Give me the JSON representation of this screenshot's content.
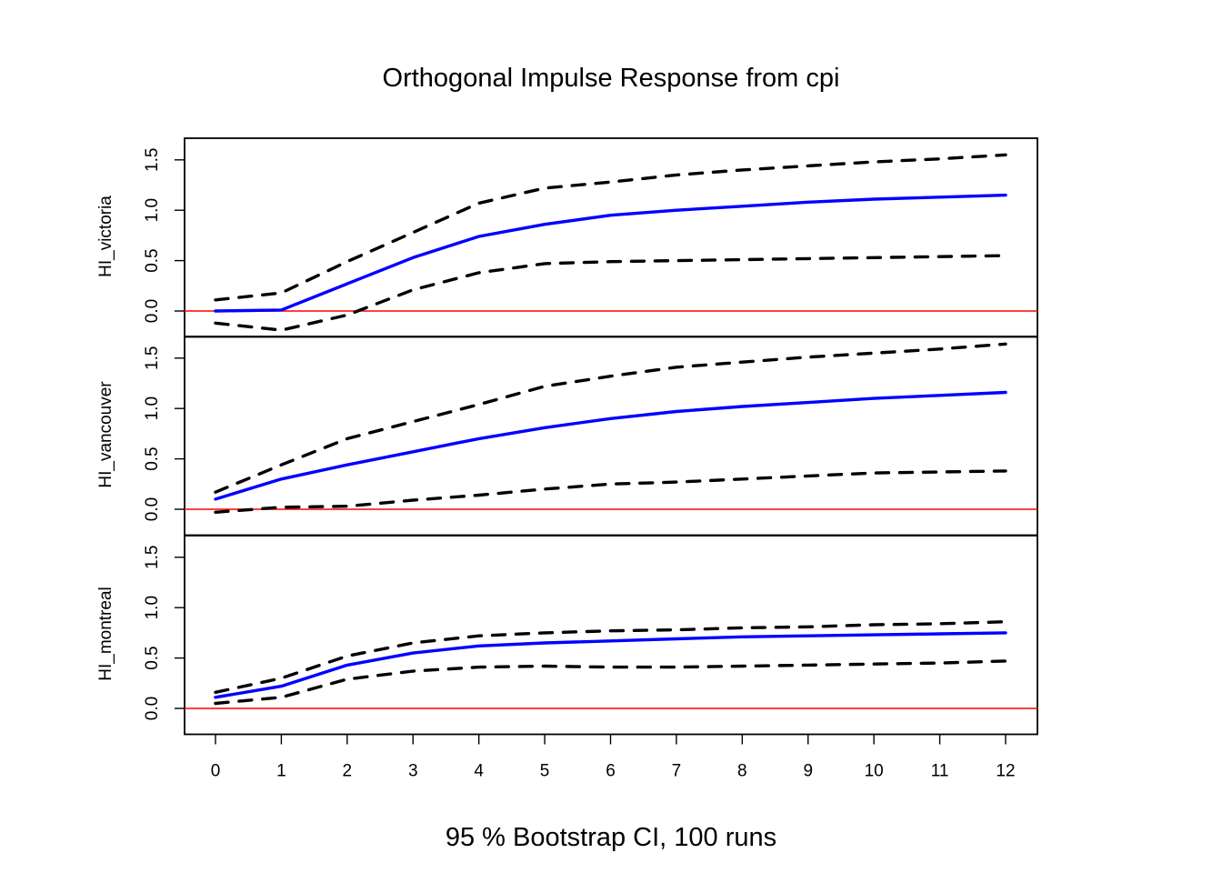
{
  "chart_data": {
    "type": "line",
    "title": "Orthogonal Impulse Response from cpi",
    "xlabel": "95 % Bootstrap CI,  100 runs",
    "x": [
      0,
      1,
      2,
      3,
      4,
      5,
      6,
      7,
      8,
      9,
      10,
      11,
      12
    ],
    "x_tick_labels": [
      "0",
      "1",
      "2",
      "3",
      "4",
      "5",
      "6",
      "7",
      "8",
      "9",
      "10",
      "11",
      "12"
    ],
    "ylim": [
      -0.3,
      1.7
    ],
    "y_ticks": [
      0.0,
      0.5,
      1.0,
      1.5
    ],
    "y_tick_labels": [
      "0.0",
      "0.5",
      "1.0",
      "1.5"
    ],
    "grid": false,
    "colors": {
      "response": "#0000ff",
      "ci": "#000000",
      "zero": "#ff0000"
    },
    "panels": [
      {
        "ylabel": "HI_victoria",
        "response": [
          0.0,
          0.01,
          0.27,
          0.53,
          0.74,
          0.86,
          0.95,
          1.0,
          1.04,
          1.08,
          1.11,
          1.13,
          1.15
        ],
        "upper": [
          0.11,
          0.18,
          0.49,
          0.78,
          1.07,
          1.22,
          1.28,
          1.35,
          1.4,
          1.44,
          1.48,
          1.51,
          1.55
        ],
        "lower": [
          -0.12,
          -0.19,
          -0.04,
          0.21,
          0.38,
          0.47,
          0.49,
          0.5,
          0.51,
          0.52,
          0.53,
          0.54,
          0.55
        ]
      },
      {
        "ylabel": "HI_vancouver",
        "response": [
          0.1,
          0.3,
          0.44,
          0.57,
          0.7,
          0.81,
          0.9,
          0.97,
          1.02,
          1.06,
          1.1,
          1.13,
          1.16
        ],
        "upper": [
          0.17,
          0.44,
          0.7,
          0.87,
          1.04,
          1.22,
          1.32,
          1.41,
          1.46,
          1.51,
          1.55,
          1.59,
          1.64
        ],
        "lower": [
          -0.03,
          0.02,
          0.03,
          0.09,
          0.14,
          0.2,
          0.25,
          0.27,
          0.3,
          0.33,
          0.36,
          0.37,
          0.38
        ]
      },
      {
        "ylabel": "HI_montreal",
        "response": [
          0.11,
          0.22,
          0.43,
          0.55,
          0.62,
          0.65,
          0.67,
          0.69,
          0.71,
          0.72,
          0.73,
          0.74,
          0.75
        ],
        "upper": [
          0.16,
          0.3,
          0.52,
          0.65,
          0.72,
          0.75,
          0.77,
          0.78,
          0.8,
          0.81,
          0.83,
          0.84,
          0.86
        ],
        "lower": [
          0.05,
          0.11,
          0.29,
          0.37,
          0.41,
          0.42,
          0.41,
          0.41,
          0.42,
          0.43,
          0.44,
          0.45,
          0.47
        ]
      }
    ]
  }
}
